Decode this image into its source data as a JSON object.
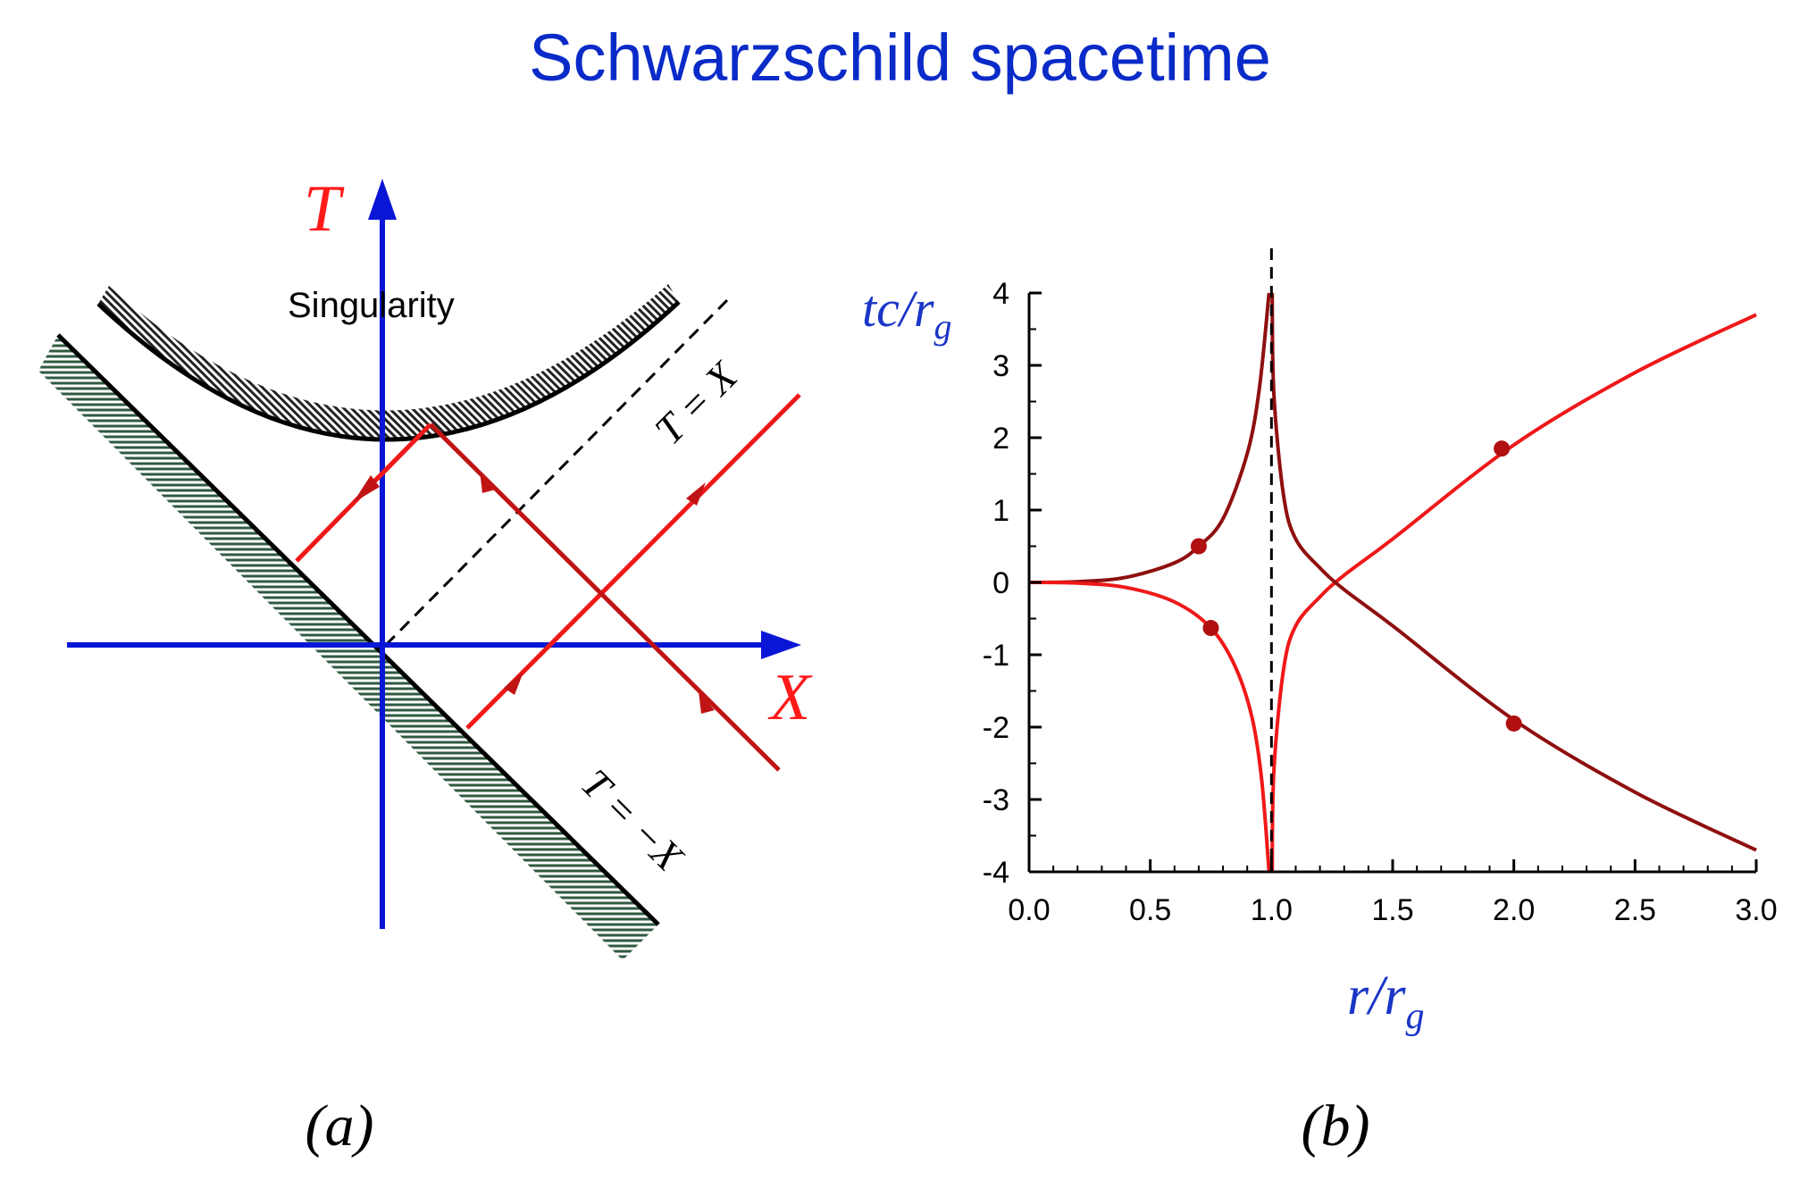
{
  "title": "Schwarzschild spacetime",
  "colors": {
    "title": "#0a2bc8",
    "axis_blue": "#0a16d6",
    "axis_label_red": "#ff1a1a",
    "light_red": "#f01818",
    "dark_red": "#8f0f0f",
    "hatch_green": "#2f5a40",
    "black": "#000000"
  },
  "panel_a": {
    "caption": "(a)",
    "t_axis_label": "T",
    "x_axis_label": "X",
    "singularity_label": "Singularity",
    "line_t_eq_x_label": "T = X",
    "line_t_eq_minus_x_label": "T = −X"
  },
  "panel_b": {
    "caption": "(b)",
    "chart_data": {
      "type": "line",
      "xlabel": "r/r_g",
      "ylabel": "tc/r_g",
      "xlim": [
        0.0,
        3.0
      ],
      "ylim": [
        -4,
        4
      ],
      "x_ticks": [
        "0.0",
        "0.5",
        "1.0",
        "1.5",
        "2.0",
        "2.5",
        "3.0"
      ],
      "y_ticks": [
        "4",
        "3",
        "2",
        "1",
        "0",
        "-1",
        "-2",
        "-3",
        "-4"
      ],
      "asymptote_x": 1.0,
      "grid": false,
      "series": [
        {
          "color": "dark_red",
          "x": [
            0.0,
            0.2,
            0.4,
            0.6,
            0.7,
            0.8,
            0.9,
            0.95,
            0.99
          ],
          "y": [
            0.0,
            0.01,
            0.07,
            0.27,
            0.5,
            0.88,
            1.78,
            2.68,
            4.0
          ]
        },
        {
          "color": "light_red",
          "x": [
            0.0,
            0.2,
            0.4,
            0.6,
            0.75,
            0.85,
            0.92,
            0.96,
            0.99
          ],
          "y": [
            0.0,
            -0.01,
            -0.07,
            -0.27,
            -0.63,
            -1.16,
            -1.87,
            -2.74,
            -4.0
          ]
        },
        {
          "color": "light_red",
          "x": [
            1.003,
            1.01,
            1.05,
            1.1,
            1.2,
            1.3,
            1.5,
            2.0,
            2.5,
            3.0
          ],
          "y": [
            -4.0,
            -2.6,
            -1.2,
            -0.6,
            -0.2,
            0.1,
            0.6,
            1.9,
            2.9,
            3.7
          ]
        },
        {
          "color": "dark_red",
          "x": [
            1.003,
            1.01,
            1.05,
            1.1,
            1.2,
            1.3,
            1.5,
            2.0,
            2.5,
            3.0
          ],
          "y": [
            4.0,
            2.6,
            1.2,
            0.6,
            0.2,
            -0.1,
            -0.6,
            -1.9,
            -2.9,
            -3.7
          ]
        }
      ],
      "arrows": [
        {
          "x": 0.7,
          "y": 0.5,
          "series": 0
        },
        {
          "x": 0.75,
          "y": -0.63,
          "series": 1
        },
        {
          "x": 1.95,
          "y": 1.85,
          "series": 2
        },
        {
          "x": 2.0,
          "y": -1.95,
          "series": 3
        }
      ]
    }
  }
}
